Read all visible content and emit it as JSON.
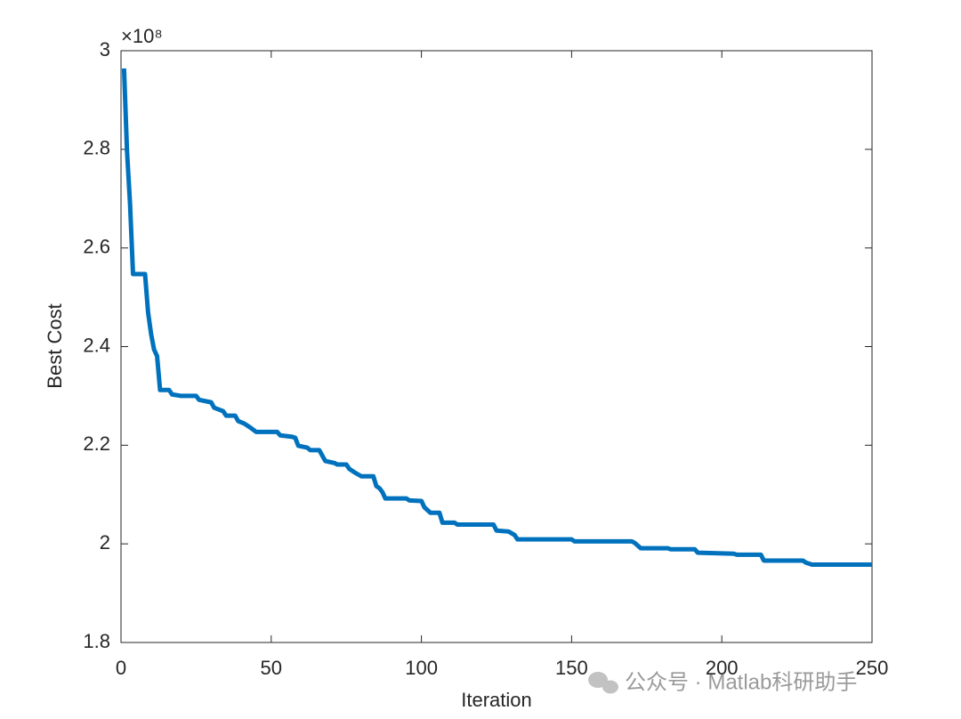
{
  "chart_data": {
    "type": "line",
    "x_label": "Iteration",
    "y_label": "Best Cost",
    "y_exponent": "×10⁸",
    "watermark": "公众号 · Matlab科研助手",
    "xlim": [
      0,
      250
    ],
    "xticks": [
      0,
      50,
      100,
      150,
      200,
      250
    ],
    "ylim": [
      1.8,
      3
    ],
    "yticks": [
      1.8,
      2,
      2.2,
      2.4,
      2.6,
      2.8,
      3
    ],
    "grid": false,
    "series": [
      {
        "color": "#0072bd",
        "x": [
          1,
          2,
          3,
          4,
          8,
          9,
          10,
          11,
          12,
          13,
          16,
          17,
          20,
          25,
          26,
          30,
          31,
          34,
          35,
          38,
          39,
          41,
          43,
          45,
          52,
          53,
          57,
          58,
          59,
          62,
          63,
          66,
          67,
          68,
          71,
          72,
          75,
          76,
          78,
          80,
          84,
          85,
          86,
          87,
          88,
          95,
          96,
          100,
          101,
          103,
          106,
          107,
          111,
          112,
          124,
          125,
          129,
          131,
          132,
          150,
          151,
          170,
          171,
          173,
          182,
          183,
          191,
          192,
          204,
          205,
          213,
          214,
          227,
          228,
          230,
          250
        ],
        "values": [
          2.964,
          2.796,
          2.69,
          2.547,
          2.547,
          2.47,
          2.426,
          2.394,
          2.381,
          2.312,
          2.312,
          2.303,
          2.3,
          2.3,
          2.292,
          2.287,
          2.276,
          2.269,
          2.26,
          2.26,
          2.249,
          2.244,
          2.236,
          2.227,
          2.227,
          2.22,
          2.217,
          2.215,
          2.199,
          2.195,
          2.19,
          2.19,
          2.179,
          2.168,
          2.164,
          2.161,
          2.161,
          2.152,
          2.144,
          2.137,
          2.137,
          2.117,
          2.113,
          2.105,
          2.092,
          2.092,
          2.088,
          2.087,
          2.074,
          2.063,
          2.063,
          2.043,
          2.043,
          2.039,
          2.039,
          2.027,
          2.025,
          2.018,
          2.009,
          2.009,
          2.005,
          2.005,
          2.002,
          1.991,
          1.991,
          1.989,
          1.989,
          1.982,
          1.98,
          1.978,
          1.978,
          1.966,
          1.966,
          1.962,
          1.958,
          1.958
        ]
      }
    ]
  }
}
